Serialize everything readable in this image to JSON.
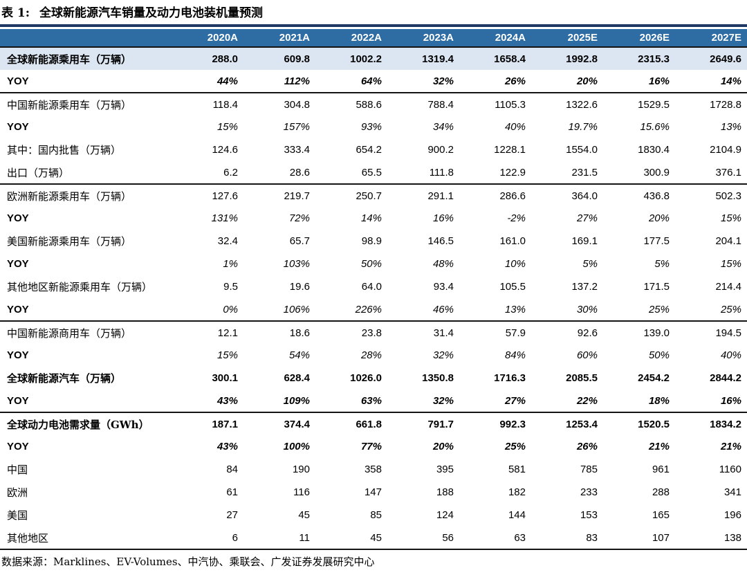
{
  "table": {
    "title_prefix": "表 1:",
    "title": "全球新能源汽车销量及动力电池装机量预测",
    "columns": [
      "2020A",
      "2021A",
      "2022A",
      "2023A",
      "2024A",
      "2025E",
      "2026E",
      "2027E"
    ],
    "rows": [
      {
        "label": "全球新能源乘用车（万辆）",
        "values": [
          "288.0",
          "609.8",
          "1002.2",
          "1319.4",
          "1658.4",
          "1992.8",
          "2315.3",
          "2649.6"
        ],
        "style": "bold",
        "shaded": true,
        "section_end": false
      },
      {
        "label": "YOY",
        "values": [
          "44%",
          "112%",
          "64%",
          "32%",
          "26%",
          "20%",
          "16%",
          "14%"
        ],
        "style": "bold-italic",
        "shaded": false,
        "section_end": true
      },
      {
        "label": "中国新能源乘用车（万辆）",
        "values": [
          "118.4",
          "304.8",
          "588.6",
          "788.4",
          "1105.3",
          "1322.6",
          "1529.5",
          "1728.8"
        ],
        "style": "plain",
        "shaded": false,
        "section_end": false
      },
      {
        "label": "YOY",
        "values": [
          "15%",
          "157%",
          "93%",
          "34%",
          "40%",
          "19.7%",
          "15.6%",
          "13%"
        ],
        "style": "italic",
        "shaded": false,
        "section_end": false
      },
      {
        "label": "其中：国内批售（万辆）",
        "values": [
          "124.6",
          "333.4",
          "654.2",
          "900.2",
          "1228.1",
          "1554.0",
          "1830.4",
          "2104.9"
        ],
        "style": "plain",
        "shaded": false,
        "section_end": false
      },
      {
        "label": "出口（万辆）",
        "values": [
          "6.2",
          "28.6",
          "65.5",
          "111.8",
          "122.9",
          "231.5",
          "300.9",
          "376.1"
        ],
        "style": "plain",
        "shaded": false,
        "section_end": true
      },
      {
        "label": "欧洲新能源乘用车（万辆）",
        "values": [
          "127.6",
          "219.7",
          "250.7",
          "291.1",
          "286.6",
          "364.0",
          "436.8",
          "502.3"
        ],
        "style": "plain",
        "shaded": false,
        "section_end": false
      },
      {
        "label": "YOY",
        "values": [
          "131%",
          "72%",
          "14%",
          "16%",
          "-2%",
          "27%",
          "20%",
          "15%"
        ],
        "style": "italic",
        "shaded": false,
        "section_end": false
      },
      {
        "label": "美国新能源乘用车（万辆）",
        "values": [
          "32.4",
          "65.7",
          "98.9",
          "146.5",
          "161.0",
          "169.1",
          "177.5",
          "204.1"
        ],
        "style": "plain",
        "shaded": false,
        "section_end": false
      },
      {
        "label": "YOY",
        "values": [
          "1%",
          "103%",
          "50%",
          "48%",
          "10%",
          "5%",
          "5%",
          "15%"
        ],
        "style": "italic",
        "shaded": false,
        "section_end": false
      },
      {
        "label": "其他地区新能源乘用车（万辆）",
        "values": [
          "9.5",
          "19.6",
          "64.0",
          "93.4",
          "105.5",
          "137.2",
          "171.5",
          "214.4"
        ],
        "style": "plain",
        "shaded": false,
        "section_end": false
      },
      {
        "label": "YOY",
        "values": [
          "0%",
          "106%",
          "226%",
          "46%",
          "13%",
          "30%",
          "25%",
          "25%"
        ],
        "style": "italic",
        "shaded": false,
        "section_end": true
      },
      {
        "label": "中国新能源商用车（万辆）",
        "values": [
          "12.1",
          "18.6",
          "23.8",
          "31.4",
          "57.9",
          "92.6",
          "139.0",
          "194.5"
        ],
        "style": "plain",
        "shaded": false,
        "section_end": false
      },
      {
        "label": "YOY",
        "values": [
          "15%",
          "54%",
          "28%",
          "32%",
          "84%",
          "60%",
          "50%",
          "40%"
        ],
        "style": "italic",
        "shaded": false,
        "section_end": false
      },
      {
        "label": "全球新能源汽车（万辆）",
        "values": [
          "300.1",
          "628.4",
          "1026.0",
          "1350.8",
          "1716.3",
          "2085.5",
          "2454.2",
          "2844.2"
        ],
        "style": "bold",
        "shaded": false,
        "section_end": false
      },
      {
        "label": "YOY",
        "values": [
          "43%",
          "109%",
          "63%",
          "32%",
          "27%",
          "22%",
          "18%",
          "16%"
        ],
        "style": "bold-italic",
        "shaded": false,
        "section_end": true
      },
      {
        "label": "全球动力电池需求量（GWh）",
        "values": [
          "187.1",
          "374.4",
          "661.8",
          "791.7",
          "992.3",
          "1253.4",
          "1520.5",
          "1834.2"
        ],
        "style": "bold",
        "shaded": false,
        "section_end": false
      },
      {
        "label": "YOY",
        "values": [
          "43%",
          "100%",
          "77%",
          "20%",
          "25%",
          "26%",
          "21%",
          "21%"
        ],
        "style": "bold-italic",
        "shaded": false,
        "section_end": false
      },
      {
        "label": "中国",
        "values": [
          "84",
          "190",
          "358",
          "395",
          "581",
          "785",
          "961",
          "1160"
        ],
        "style": "plain",
        "shaded": false,
        "section_end": false
      },
      {
        "label": "欧洲",
        "values": [
          "61",
          "116",
          "147",
          "188",
          "182",
          "233",
          "288",
          "341"
        ],
        "style": "plain",
        "shaded": false,
        "section_end": false
      },
      {
        "label": "美国",
        "values": [
          "27",
          "45",
          "85",
          "124",
          "144",
          "153",
          "165",
          "196"
        ],
        "style": "plain",
        "shaded": false,
        "section_end": false
      },
      {
        "label": "其他地区",
        "values": [
          "6",
          "11",
          "45",
          "56",
          "63",
          "83",
          "107",
          "138"
        ],
        "style": "plain",
        "shaded": false,
        "section_end": true
      }
    ],
    "source": "数据来源：Marklines、EV-Volumes、中汽协、乘联会、广发证券发展研究中心"
  },
  "colors": {
    "header_bg": "#2E6DA4",
    "shaded_row_bg": "#DCE6F2",
    "title_rule": "#1F3864",
    "section_border": "#141414"
  }
}
